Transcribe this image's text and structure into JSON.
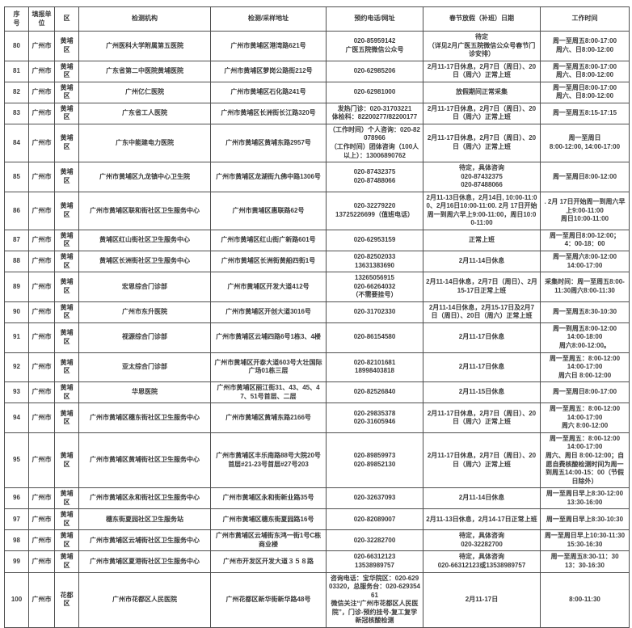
{
  "colors": {
    "text": "#3a3a3a",
    "border": "#4e4e4e",
    "background": "#ffffff"
  },
  "table": {
    "col_keys": [
      "no",
      "unit",
      "district",
      "org",
      "addr",
      "phone",
      "holiday",
      "hours"
    ],
    "columns": [
      "序\n号",
      "填报单\n位",
      "区",
      "检测机构",
      "检测/采样地址",
      "预约电话/网址",
      "春节放假（补班）日期",
      "工作时间"
    ],
    "rows": [
      [
        "80",
        "广州市",
        "黄埔区",
        "广州医科大学附属第五医院",
        "广州市黄埔区港湾路621号",
        "020-85959142\n广医五院微信公众号",
        "待定\n（详见2月广医五院微信公众号春节门诊安排）",
        "周一至周五8:00-17:00\n周六、日8:00-12:00"
      ],
      [
        "81",
        "广州市",
        "黄埔区",
        "广东省第二中医院黄埔医院",
        "广州市黄埔区萝岗公路街212号",
        "020-62985206",
        "2月11-17日休息，2月7日（周日）、20日（周六）正常上班",
        "周一至周五8:00-17:00\n周六、日8:00-12:00"
      ],
      [
        "82",
        "广州市",
        "黄埔区",
        "广州亿仁医院",
        "广州市黄埔区石化路241号",
        "020-62981000",
        "放假期间正常采集",
        "周一至周日8:00-17:00\n周六、日8:00-12:00"
      ],
      [
        "83",
        "广州市",
        "黄埔区",
        "广东省工人医院",
        "广州市黄埔区长洲街长江路320号",
        "发热门诊：020-31703221\n体检科：82200277/82200177",
        "2月11-17日休息，2月7日（周日）、20日（周六）正常上班",
        "周一至周五8:15-17:15"
      ],
      [
        "84",
        "广州市",
        "黄埔区",
        "广东中能建电力医院",
        "广州市黄埔区黄埔东路2957号",
        "（工作时间）个人咨询：020-82078966\n（工作时间）团体咨询（100人以上）：13006890762",
        "2月11-17日休息，2月7日（周日）、20日（周六）正常上班",
        "周一至周日\n8:00-12:00, 14:00-17:00"
      ],
      [
        "85",
        "广州市",
        "黄埔区",
        "广州市黄埔区九龙镇中心卫生院",
        "广州市黄埔区龙湖街九佛中路1306号",
        "020-87432375\n020-87488066",
        "待定，具体咨询\n020-87432375\n020-87488066",
        "周一至周日8:00-12:00"
      ],
      [
        "86",
        "广州市",
        "黄埔区",
        "广州市黄埔区联和街社区卫生服务中心",
        "广州市黄埔区惠联路62号",
        "020-32279220\n13725226699（值班电话）",
        "2月11-13日休息，2月14日, 10:00-11:00、2月16日10:00-11:00. 2月 17日开始周一到周六早上9:00-11:00，周日10:00-11:00",
        ". 2月 17日开始周一到周六早上9:00-11:00\n周日10:00-11:00"
      ],
      [
        "87",
        "广州市",
        "黄埔区",
        "黄埔区红山街社区卫生服务中心",
        "广州市黄埔区红山街广新路601号",
        "020-62953159",
        "正常上班",
        "周一至周日8:00-12:00；\n4：00-18：00"
      ],
      [
        "88",
        "广州市",
        "黄埔区",
        "黄埔区长洲街社区卫生服务中心",
        "广州市黄埔区长洲街黄船四街1号",
        "020-82502033\n13631383690",
        "2月11-14日休息",
        "周一至周六8:00-12:00\n14:00-17:00"
      ],
      [
        "89",
        "广州市",
        "黄埔区",
        "宏恩综合门诊部",
        "广州市黄埔区开发大道412号",
        "13265056915\n020-66264032\n（不需要挂号）",
        "2月11-14日休息，2月7日（周日）、2月15-17日正常上班",
        "采集时间：周一至周五8:00-11:30周六8:00-11:30"
      ],
      [
        "90",
        "广州市",
        "黄埔区",
        "广州市东升医院",
        "广州市黄埔区开创大道3016号",
        "020-31702330",
        "2月11-14日休息，2月15-17日及2月7日（周日）、20日（周六）正常上班",
        "周一至周五8:30-10:30"
      ],
      [
        "91",
        "广州市",
        "黄埔区",
        "视源综合门诊部",
        "广州市黄埔区云埔四路6号1栋3、4楼",
        "020-86154580",
        "2月11-17日休息",
        "周一到周五8:00-12:00\n14:00-18:00\n周六8:00-12:00。"
      ],
      [
        "92",
        "广州市",
        "黄埔区",
        "亚太综合门诊部",
        "广州市黄埔区开泰大道603号大壮国际广场01栋三层",
        "020-82101681\n18998403818",
        "2月11-17日休息",
        "周一至周五：8:00-12:00\n14:00-17:00\n周六日 8:00-12:00"
      ],
      [
        "93",
        "广州市",
        "黄埔区",
        "华恩医院",
        "广州市黄埔区丽江街31、43、45、47、51号首层、二层",
        "020-82526840",
        "2月11-15日休息",
        "周一至周日8:00-17:00"
      ],
      [
        "94",
        "广州市",
        "黄埔区",
        "广州市黄埔区穗东街社区卫生服务中心",
        "广州市黄埔区黄埔东路2166号",
        "020-29835378\n020-31605946",
        "2月11-17日休息，2月7日（周日）、20日（周六）正常上班",
        "周一至周五：8:00-12:00\n14:00-17:00\n周六 8:00-12:00"
      ],
      [
        "95",
        "广州市",
        "黄埔区",
        "广州市黄埔区黄埔街社区卫生服务中心",
        "广州市黄埔区丰乐南路88号大院20号首层#21-23号首层#27号203",
        "020-89859973\n020-89852130",
        "2月11-17日休息，2月7日（周日）、20日（周六）正常上班",
        "周一至周五：8:00-12:00\n14:00-17:00\n周六、周日 8:00-12:00；自愿自费核酸检测时间为周一到周五14:00-15：00（节假日除外）"
      ],
      [
        "96",
        "广州市",
        "黄埔区",
        "广州市黄埔区永和街社区卫生服务中心",
        "广州市黄埔区永和街新业路35号",
        "020-32637093",
        "2月11-14日休息",
        "周一至周日早上8:30-12:00\n13:30-16:00"
      ],
      [
        "97",
        "广州市",
        "黄埔区",
        "穗东街夏园社区卫生服务站",
        "广州市黄埔区穗东街夏园路16号",
        "020-82089007",
        "2月11-13日休息，2月14-17日正常上班",
        "周一至周日早上8:30-10:30"
      ],
      [
        "98",
        "广州市",
        "黄埔区",
        "广州市黄埔区云埔街社区卫生服务中心",
        "广州市黄埔区云埔街东鸿一街1号C栋商业楼",
        "020-32282700",
        "待定，具体咨询\n020-32282700",
        "周一至周日早上10:30-11:30\n15:30-16:30"
      ],
      [
        "99",
        "广州市",
        "黄埔区",
        "广州市黄埔区夏港街社区卫生服务中心",
        "广州市开发区开发大道３５８路",
        "020-66312123\n13538989757",
        "待定，具体咨询\n020-66312123或13538989757",
        "周一至周五8:30-11：30\n13：30-16:30"
      ],
      [
        "100",
        "广州市",
        "花都区",
        "广州市花都区人民医院",
        "广州花都区新华街新华路48号",
        "咨询电话：宝华院区：020-62903320，总服务台：020-62935461\n微信关注“广州市花都区人民医院”，门诊-预约挂号-复工复学新冠核酸检测",
        "2月11-17日",
        "8:00-11:30"
      ]
    ]
  }
}
